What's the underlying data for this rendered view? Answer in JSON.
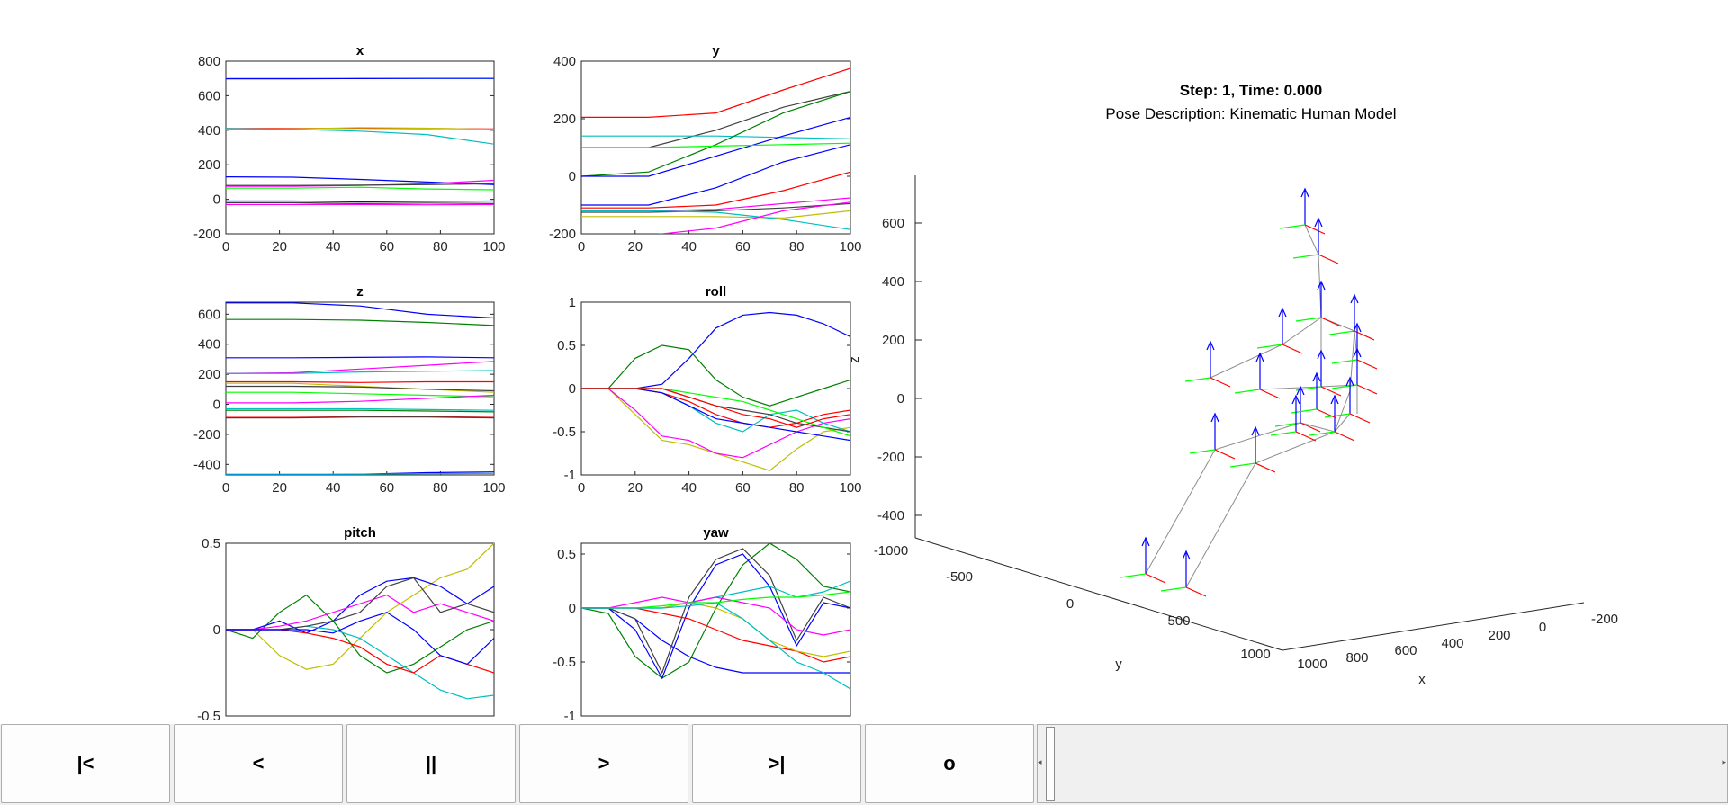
{
  "header": {
    "step": "Step: 1, Time: 0.000",
    "pose": "Pose Description: Kinematic Human Model"
  },
  "plots": [
    {
      "title": "x",
      "yticks": [
        "800",
        "600",
        "400",
        "200",
        "0",
        "-200"
      ],
      "xticks": [
        "0",
        "20",
        "40",
        "60",
        "80",
        "100"
      ]
    },
    {
      "title": "y",
      "yticks": [
        "400",
        "200",
        "0",
        "-200"
      ],
      "xticks": [
        "0",
        "20",
        "40",
        "60",
        "80",
        "100"
      ]
    },
    {
      "title": "z",
      "yticks": [
        "600",
        "400",
        "200",
        "0",
        "-200",
        "-400"
      ],
      "xticks": [
        "0",
        "20",
        "40",
        "60",
        "80",
        "100"
      ]
    },
    {
      "title": "roll",
      "yticks": [
        "1",
        "0.5",
        "0",
        "-0.5",
        "-1"
      ],
      "xticks": [
        "0",
        "20",
        "40",
        "60",
        "80",
        "100"
      ]
    },
    {
      "title": "pitch",
      "yticks": [
        "0.5",
        "0",
        "-0.5"
      ],
      "xticks": []
    },
    {
      "title": "yaw",
      "yticks": [
        "0.5",
        "0",
        "-0.5",
        "-1"
      ],
      "xticks": []
    }
  ],
  "view3d": {
    "zlabel": "z",
    "ylabel": "y",
    "xlabel": "x",
    "zticks": [
      "600",
      "400",
      "200",
      "0",
      "-200",
      "-400"
    ],
    "yticks": [
      "-1000",
      "-500",
      "0",
      "500",
      "1000"
    ],
    "xticks": [
      "1000",
      "800",
      "600",
      "400",
      "200",
      "0",
      "-200"
    ]
  },
  "chart_data": [
    {
      "type": "line",
      "title": "x",
      "x": [
        0,
        25,
        50,
        75,
        100
      ],
      "xlim": [
        0,
        100
      ],
      "ylim": [
        -200,
        800
      ],
      "series": [
        {
          "color": "#00bfbf",
          "values": [
            700,
            700,
            700,
            700,
            700
          ]
        },
        {
          "color": "#0000ff",
          "values": [
            698,
            698,
            699,
            700,
            700
          ]
        },
        {
          "color": "#ff0000",
          "values": [
            410,
            410,
            412,
            410,
            408
          ]
        },
        {
          "color": "#bfbf00",
          "values": [
            405,
            408,
            415,
            412,
            405
          ]
        },
        {
          "color": "#00bfbf",
          "values": [
            410,
            405,
            395,
            375,
            320
          ]
        },
        {
          "color": "#0000ff",
          "values": [
            130,
            128,
            115,
            100,
            85
          ]
        },
        {
          "color": "#ff00ff",
          "values": [
            75,
            75,
            80,
            90,
            110
          ]
        },
        {
          "color": "#00ff00",
          "values": [
            65,
            65,
            70,
            60,
            55
          ]
        },
        {
          "color": "#404040",
          "values": [
            80,
            80,
            82,
            85,
            90
          ]
        },
        {
          "color": "#0000ff",
          "values": [
            -10,
            -10,
            -15,
            -12,
            -10
          ]
        },
        {
          "color": "#404040",
          "values": [
            -20,
            -20,
            -25,
            -22,
            -25
          ]
        },
        {
          "color": "#ff00ff",
          "values": [
            -30,
            -30,
            -30,
            -32,
            -30
          ]
        }
      ]
    },
    {
      "type": "line",
      "title": "y",
      "x": [
        0,
        25,
        50,
        75,
        100
      ],
      "xlim": [
        0,
        100
      ],
      "ylim": [
        -200,
        400
      ],
      "series": [
        {
          "color": "#ff0000",
          "values": [
            205,
            205,
            220,
            300,
            375
          ]
        },
        {
          "color": "#404040",
          "values": [
            100,
            100,
            160,
            240,
            295
          ]
        },
        {
          "color": "#00bfbf",
          "values": [
            140,
            140,
            140,
            135,
            130
          ]
        },
        {
          "color": "#008000",
          "values": [
            0,
            15,
            110,
            220,
            295
          ]
        },
        {
          "color": "#0000ff",
          "values": [
            0,
            0,
            70,
            140,
            205
          ]
        },
        {
          "color": "#00ff00",
          "values": [
            100,
            100,
            105,
            110,
            115
          ]
        },
        {
          "color": "#0000ff",
          "values": [
            -100,
            -100,
            -40,
            50,
            110
          ]
        },
        {
          "color": "#ff0000",
          "values": [
            -110,
            -110,
            -100,
            -50,
            15
          ]
        },
        {
          "color": "#ff00ff",
          "values": [
            -120,
            -120,
            -115,
            -95,
            -75
          ]
        },
        {
          "color": "#404040",
          "values": [
            -125,
            -125,
            -120,
            -110,
            -95
          ]
        },
        {
          "color": "#bfbf00",
          "values": [
            -140,
            -140,
            -140,
            -145,
            -120
          ]
        },
        {
          "color": "#00bfbf",
          "values": [
            -120,
            -120,
            -125,
            -150,
            -185
          ]
        },
        {
          "color": "#ff00ff",
          "values": [
            -205,
            -205,
            -180,
            -120,
            -90
          ]
        }
      ]
    },
    {
      "type": "line",
      "title": "z",
      "x": [
        0,
        25,
        50,
        75,
        100
      ],
      "xlim": [
        0,
        100
      ],
      "ylim": [
        -470,
        680
      ],
      "series": [
        {
          "color": "#0000ff",
          "values": [
            675,
            675,
            655,
            600,
            575
          ]
        },
        {
          "color": "#008000",
          "values": [
            565,
            565,
            560,
            545,
            525
          ]
        },
        {
          "color": "#0000ff",
          "values": [
            310,
            310,
            312,
            315,
            310
          ]
        },
        {
          "color": "#ff00ff",
          "values": [
            205,
            210,
            235,
            260,
            285
          ]
        },
        {
          "color": "#00bfbf",
          "values": [
            205,
            205,
            215,
            220,
            225
          ]
        },
        {
          "color": "#ff0000",
          "values": [
            150,
            150,
            145,
            150,
            150
          ]
        },
        {
          "color": "#bfbf00",
          "values": [
            140,
            140,
            120,
            100,
            80
          ]
        },
        {
          "color": "#404040",
          "values": [
            120,
            120,
            115,
            100,
            90
          ]
        },
        {
          "color": "#00ff00",
          "values": [
            80,
            80,
            70,
            60,
            50
          ]
        },
        {
          "color": "#ff00ff",
          "values": [
            10,
            10,
            20,
            40,
            60
          ]
        },
        {
          "color": "#00bfbf",
          "values": [
            -30,
            -30,
            -30,
            -35,
            -40
          ]
        },
        {
          "color": "#008000",
          "values": [
            -40,
            -40,
            -40,
            -45,
            -50
          ]
        },
        {
          "color": "#ff0000",
          "values": [
            -80,
            -80,
            -80,
            -80,
            -80
          ]
        },
        {
          "color": "#404040",
          "values": [
            -90,
            -90,
            -85,
            -85,
            -90
          ]
        },
        {
          "color": "#0000ff",
          "values": [
            -470,
            -470,
            -465,
            -455,
            -450
          ]
        },
        {
          "color": "#00bfbf",
          "values": [
            -465,
            -465,
            -465,
            -462,
            -460
          ]
        }
      ]
    },
    {
      "type": "line",
      "title": "roll",
      "x": [
        0,
        10,
        20,
        30,
        40,
        50,
        60,
        70,
        80,
        90,
        100
      ],
      "xlim": [
        0,
        100
      ],
      "ylim": [
        -1,
        1
      ],
      "series": [
        {
          "color": "#0000ff",
          "values": [
            0,
            0,
            0,
            0.05,
            0.35,
            0.7,
            0.85,
            0.88,
            0.85,
            0.75,
            0.6
          ]
        },
        {
          "color": "#008000",
          "values": [
            0,
            0,
            0.35,
            0.5,
            0.45,
            0.1,
            -0.1,
            -0.2,
            -0.1,
            0.0,
            0.1
          ]
        },
        {
          "color": "#bfbf00",
          "values": [
            0,
            0,
            -0.3,
            -0.6,
            -0.65,
            -0.75,
            -0.85,
            -0.95,
            -0.7,
            -0.5,
            -0.45
          ]
        },
        {
          "color": "#ff00ff",
          "values": [
            0,
            0,
            -0.25,
            -0.55,
            -0.6,
            -0.75,
            -0.8,
            -0.65,
            -0.5,
            -0.4,
            -0.35
          ]
        },
        {
          "color": "#00bfbf",
          "values": [
            0,
            0,
            0,
            -0.05,
            -0.2,
            -0.4,
            -0.5,
            -0.3,
            -0.25,
            -0.4,
            -0.5
          ]
        },
        {
          "color": "#ff0000",
          "values": [
            0,
            0,
            0,
            -0.05,
            -0.15,
            -0.3,
            -0.4,
            -0.45,
            -0.4,
            -0.3,
            -0.25
          ]
        },
        {
          "color": "#404040",
          "values": [
            0,
            0,
            0,
            0,
            -0.1,
            -0.2,
            -0.25,
            -0.3,
            -0.4,
            -0.45,
            -0.5
          ]
        },
        {
          "color": "#0000ff",
          "values": [
            0,
            0,
            0,
            -0.05,
            -0.2,
            -0.35,
            -0.4,
            -0.45,
            -0.5,
            -0.55,
            -0.6
          ]
        },
        {
          "color": "#00ff00",
          "values": [
            0,
            0,
            0,
            0,
            -0.05,
            -0.1,
            -0.15,
            -0.25,
            -0.35,
            -0.45,
            -0.55
          ]
        },
        {
          "color": "#ff0000",
          "values": [
            0,
            0,
            0,
            0,
            -0.1,
            -0.2,
            -0.3,
            -0.35,
            -0.45,
            -0.35,
            -0.3
          ]
        }
      ]
    },
    {
      "type": "line",
      "title": "pitch",
      "x": [
        0,
        10,
        20,
        30,
        40,
        50,
        60,
        70,
        80,
        90,
        100
      ],
      "xlim": [
        0,
        100
      ],
      "ylim": [
        -0.5,
        0.5
      ],
      "series": [
        {
          "color": "#bfbf00",
          "values": [
            0,
            0,
            -0.15,
            -0.23,
            -0.2,
            -0.05,
            0.1,
            0.2,
            0.3,
            0.35,
            0.5
          ]
        },
        {
          "color": "#008000",
          "values": [
            0,
            -0.05,
            0.1,
            0.2,
            0.05,
            -0.15,
            -0.25,
            -0.2,
            -0.1,
            0.0,
            0.05
          ]
        },
        {
          "color": "#0000ff",
          "values": [
            0,
            0,
            0.05,
            -0.02,
            0.05,
            0.2,
            0.28,
            0.3,
            0.25,
            0.15,
            0.25
          ]
        },
        {
          "color": "#00bfbf",
          "values": [
            0,
            0,
            0,
            0.02,
            0.0,
            -0.05,
            -0.15,
            -0.25,
            -0.35,
            -0.4,
            -0.38
          ]
        },
        {
          "color": "#ff0000",
          "values": [
            0,
            0,
            0,
            -0.02,
            -0.05,
            -0.1,
            -0.2,
            -0.25,
            -0.15,
            -0.2,
            -0.25
          ]
        },
        {
          "color": "#ff00ff",
          "values": [
            0,
            0,
            0.02,
            0.05,
            0.1,
            0.15,
            0.2,
            0.1,
            0.15,
            0.1,
            0.05
          ]
        },
        {
          "color": "#404040",
          "values": [
            0,
            0,
            0,
            0.02,
            0.05,
            0.1,
            0.25,
            0.3,
            0.1,
            0.15,
            0.1
          ]
        },
        {
          "color": "#0000ff",
          "values": [
            0,
            0,
            0,
            0,
            -0.02,
            0.05,
            0.1,
            0.0,
            -0.15,
            -0.2,
            -0.05
          ]
        }
      ]
    },
    {
      "type": "line",
      "title": "yaw",
      "x": [
        0,
        10,
        20,
        30,
        40,
        50,
        60,
        70,
        80,
        90,
        100
      ],
      "xlim": [
        0,
        100
      ],
      "ylim": [
        -1,
        0.6
      ],
      "series": [
        {
          "color": "#008000",
          "values": [
            0,
            -0.05,
            -0.45,
            -0.65,
            -0.5,
            0.0,
            0.4,
            0.6,
            0.45,
            0.2,
            0.15
          ]
        },
        {
          "color": "#0000ff",
          "values": [
            0,
            0,
            -0.1,
            -0.3,
            -0.45,
            -0.55,
            -0.6,
            -0.6,
            -0.6,
            -0.6,
            -0.6
          ]
        },
        {
          "color": "#404040",
          "values": [
            0,
            0,
            -0.1,
            -0.6,
            0.1,
            0.45,
            0.55,
            0.3,
            -0.3,
            0.1,
            0.0
          ]
        },
        {
          "color": "#0000ff",
          "values": [
            0,
            0,
            -0.2,
            -0.65,
            0.0,
            0.4,
            0.5,
            0.2,
            -0.35,
            0.05,
            0.0
          ]
        },
        {
          "color": "#00bfbf",
          "values": [
            0,
            0,
            0,
            0,
            0.05,
            0.1,
            0.15,
            0.2,
            0.1,
            0.15,
            0.25
          ]
        },
        {
          "color": "#ff0000",
          "values": [
            0,
            0,
            0,
            -0.05,
            -0.1,
            -0.2,
            -0.3,
            -0.35,
            -0.4,
            -0.5,
            -0.45
          ]
        },
        {
          "color": "#bfbf00",
          "values": [
            0,
            0,
            0,
            0,
            0.05,
            0.0,
            -0.1,
            -0.3,
            -0.4,
            -0.45,
            -0.4
          ]
        },
        {
          "color": "#ff00ff",
          "values": [
            0,
            0,
            0.05,
            0.1,
            0.05,
            0.1,
            0.05,
            0.0,
            -0.2,
            -0.25,
            -0.2
          ]
        },
        {
          "color": "#00ff00",
          "values": [
            0,
            0,
            0,
            0.02,
            0.05,
            0.05,
            0.08,
            0.1,
            0.1,
            0.12,
            0.15
          ]
        },
        {
          "color": "#00bfbf",
          "values": [
            0,
            0,
            0,
            0,
            0.02,
            0.05,
            -0.1,
            -0.3,
            -0.5,
            -0.6,
            -0.75
          ]
        }
      ]
    }
  ],
  "controls": [
    {
      "label": "|<",
      "name": "first-step-button"
    },
    {
      "label": "<",
      "name": "previous-step-button"
    },
    {
      "label": "||",
      "name": "pause-button"
    },
    {
      "label": ">",
      "name": "next-step-button"
    },
    {
      "label": ">|",
      "name": "last-step-button"
    },
    {
      "label": "o",
      "name": "reset-button"
    }
  ],
  "slider": {
    "left_arrow": "◂",
    "right_arrow": "▸"
  }
}
